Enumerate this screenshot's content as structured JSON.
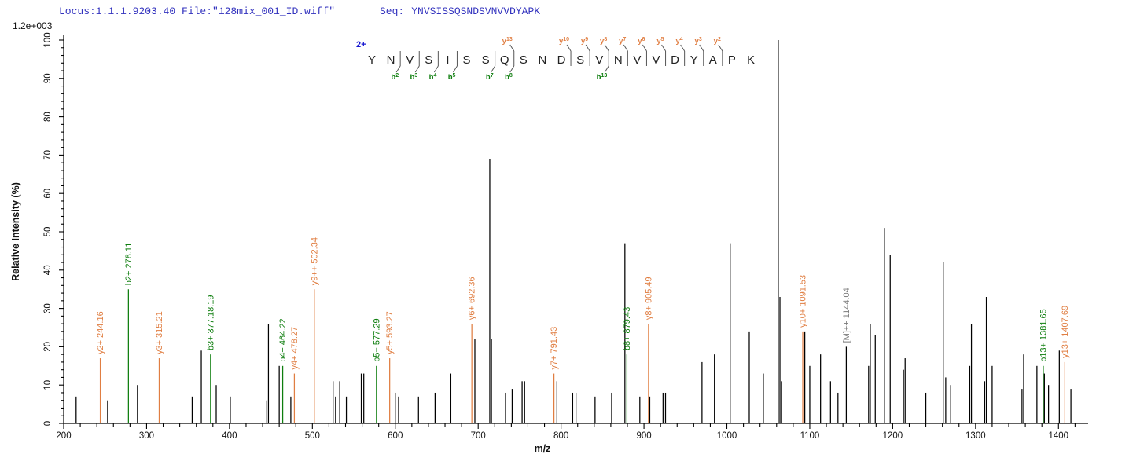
{
  "header": {
    "locus_text": "Locus:1.1.1.9203.40 File:\"128mix_001_ID.wiff\"",
    "seq_label": "Seq:",
    "sequence": "YNVSISSQSNDSVNVVDYAPK",
    "intensity_scale": "1.2e+003"
  },
  "peptide_panel": {
    "charge_label": "2+",
    "residues": [
      "Y",
      "N",
      "V",
      "S",
      "I",
      "S",
      "S",
      "Q",
      "S",
      "N",
      "D",
      "S",
      "V",
      "N",
      "V",
      "V",
      "D",
      "Y",
      "A",
      "P",
      "K"
    ],
    "y_ion_markers": [
      {
        "letter": "y",
        "num": "13",
        "after_residue": 8
      },
      {
        "letter": "y",
        "num": "10",
        "after_residue": 11
      },
      {
        "letter": "y",
        "num": "9",
        "after_residue": 12
      },
      {
        "letter": "y",
        "num": "8",
        "after_residue": 13
      },
      {
        "letter": "y",
        "num": "7",
        "after_residue": 14
      },
      {
        "letter": "y",
        "num": "6",
        "after_residue": 15
      },
      {
        "letter": "y",
        "num": "5",
        "after_residue": 16
      },
      {
        "letter": "y",
        "num": "4",
        "after_residue": 17
      },
      {
        "letter": "y",
        "num": "3",
        "after_residue": 18
      },
      {
        "letter": "y",
        "num": "2",
        "after_residue": 19
      }
    ],
    "b_ion_markers": [
      {
        "letter": "b",
        "num": "2",
        "after_residue": 2
      },
      {
        "letter": "b",
        "num": "3",
        "after_residue": 3
      },
      {
        "letter": "b",
        "num": "4",
        "after_residue": 4
      },
      {
        "letter": "b",
        "num": "5",
        "after_residue": 5
      },
      {
        "letter": "b",
        "num": "7",
        "after_residue": 7
      },
      {
        "letter": "b",
        "num": "8",
        "after_residue": 8
      },
      {
        "letter": "b",
        "num": "13",
        "after_residue": 13
      }
    ]
  },
  "chart_data": {
    "type": "bar",
    "subtype": "mass-spectrum",
    "title": "",
    "xlabel": "m/z",
    "ylabel": "Relative Intensity (%)",
    "xlim": [
      197,
      1437
    ],
    "ylim": [
      0,
      100
    ],
    "x_tick_start": 200,
    "x_tick_end": 1400,
    "x_major_step": 100,
    "x_minor_step": 20,
    "x_minor_end": 1420,
    "y_major_step": 10,
    "y_minor_step": 2,
    "grid": false,
    "labeled_peaks": [
      {
        "label": "y2+ 244.16",
        "mz": 244.16,
        "intensity": 17,
        "ion": "y"
      },
      {
        "label": "b2+ 278.11",
        "mz": 278.11,
        "intensity": 35,
        "ion": "b"
      },
      {
        "label": "y3+ 315.21",
        "mz": 315.21,
        "intensity": 17,
        "ion": "y"
      },
      {
        "label": "b3+ 377.18.19",
        "mz": 377.18,
        "intensity": 18,
        "ion": "b"
      },
      {
        "label": "b4+ 464.22",
        "mz": 464.22,
        "intensity": 15,
        "ion": "b"
      },
      {
        "label": "y4+ 478.27",
        "mz": 478.27,
        "intensity": 13,
        "ion": "y"
      },
      {
        "label": "y9++ 502.34",
        "mz": 502.34,
        "intensity": 35,
        "ion": "y"
      },
      {
        "label": "b5+ 577.29",
        "mz": 577.29,
        "intensity": 15,
        "ion": "b"
      },
      {
        "label": "y5+ 593.27",
        "mz": 593.27,
        "intensity": 17,
        "ion": "y"
      },
      {
        "label": "y6+ 692.36",
        "mz": 692.36,
        "intensity": 26,
        "ion": "y"
      },
      {
        "label": "y7+ 791.43",
        "mz": 791.43,
        "intensity": 13,
        "ion": "y"
      },
      {
        "label": "b8+ 879.43",
        "mz": 879.43,
        "intensity": 18,
        "ion": "b"
      },
      {
        "label": "y8+ 905.49",
        "mz": 905.49,
        "intensity": 26,
        "ion": "y"
      },
      {
        "label": "y10+ 1091.53",
        "mz": 1091.53,
        "intensity": 24,
        "ion": "y"
      },
      {
        "label": "[M]++ 1144.04",
        "mz": 1144.04,
        "intensity": 20,
        "ion": "precursor"
      },
      {
        "label": "b13+ 1381.65",
        "mz": 1381.65,
        "intensity": 15,
        "ion": "b"
      },
      {
        "label": "y13+ 1407.69",
        "mz": 1407.69,
        "intensity": 16,
        "ion": "y"
      }
    ],
    "unlabeled_peaks": [
      [
        215,
        7
      ],
      [
        253,
        6
      ],
      [
        289,
        10
      ],
      [
        355,
        7
      ],
      [
        366,
        19
      ],
      [
        384,
        10
      ],
      [
        401,
        7
      ],
      [
        445,
        6
      ],
      [
        447,
        26
      ],
      [
        460,
        15
      ],
      [
        474,
        7
      ],
      [
        525,
        11
      ],
      [
        528,
        7
      ],
      [
        533,
        11
      ],
      [
        541,
        7
      ],
      [
        559,
        13
      ],
      [
        562,
        13
      ],
      [
        600,
        8
      ],
      [
        604,
        7
      ],
      [
        628,
        7
      ],
      [
        648,
        8
      ],
      [
        667,
        13
      ],
      [
        696,
        22
      ],
      [
        714,
        69
      ],
      [
        716,
        22
      ],
      [
        733,
        8
      ],
      [
        741,
        9
      ],
      [
        753,
        11
      ],
      [
        756,
        11
      ],
      [
        795,
        11
      ],
      [
        814,
        8
      ],
      [
        818,
        8
      ],
      [
        841,
        7
      ],
      [
        861,
        8
      ],
      [
        877,
        47
      ],
      [
        895,
        7
      ],
      [
        907,
        7
      ],
      [
        923,
        8
      ],
      [
        926,
        8
      ],
      [
        970,
        16
      ],
      [
        985,
        18
      ],
      [
        1004,
        47
      ],
      [
        1027,
        24
      ],
      [
        1044,
        13
      ],
      [
        1062,
        100
      ],
      [
        1064,
        33
      ],
      [
        1066,
        11
      ],
      [
        1094,
        24
      ],
      [
        1100,
        15
      ],
      [
        1113,
        18
      ],
      [
        1125,
        11
      ],
      [
        1134,
        8
      ],
      [
        1171,
        15
      ],
      [
        1173,
        26
      ],
      [
        1179,
        23
      ],
      [
        1190,
        51
      ],
      [
        1197,
        44
      ],
      [
        1213,
        14
      ],
      [
        1215,
        17
      ],
      [
        1240,
        8
      ],
      [
        1261,
        42
      ],
      [
        1264,
        12
      ],
      [
        1270,
        10
      ],
      [
        1293,
        15
      ],
      [
        1295,
        26
      ],
      [
        1311,
        11
      ],
      [
        1313,
        33
      ],
      [
        1320,
        15
      ],
      [
        1356,
        9
      ],
      [
        1358,
        18
      ],
      [
        1374,
        15
      ],
      [
        1383,
        13
      ],
      [
        1388,
        10
      ],
      [
        1401,
        19
      ],
      [
        1415,
        9
      ]
    ]
  },
  "colors": {
    "y_ion": "#E07E42",
    "b_ion": "#0E7E0E",
    "precursor_line": "#000000",
    "precursor_label": "#7A7A7A",
    "peak": "#000000",
    "axis": "#000000",
    "header_text": "#3232BE",
    "charge_label": "#1515D0",
    "residue_text": "#222222",
    "divider": "#555555"
  }
}
